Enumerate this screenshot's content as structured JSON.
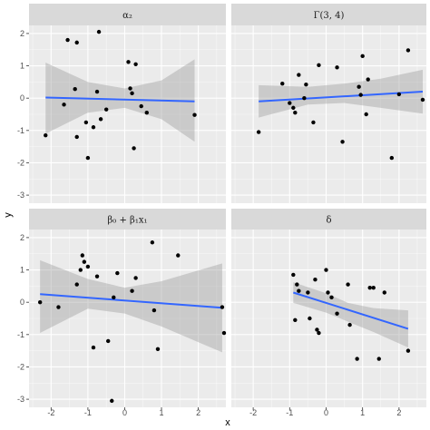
{
  "chart_data": {
    "type": "scatter",
    "xlabel": "x",
    "ylabel": "y",
    "xlim": [
      -2.6,
      2.75
    ],
    "ylim": [
      -3.25,
      2.25
    ],
    "x_ticks": [
      -2,
      -1,
      0,
      1,
      2
    ],
    "y_ticks": [
      -3,
      -2,
      -1,
      0,
      1,
      2
    ],
    "grid": true,
    "fit": "linear regression line with confidence band",
    "colors": {
      "panel_background": "#ebebeb",
      "strip_background": "#d9d9d9",
      "grid_major": "#ffffff",
      "points": "#000000",
      "fit_line": "#3366ff",
      "confidence_band": "#999999"
    },
    "panels": [
      {
        "label": "α₂",
        "points": [
          [
            -2.15,
            -1.15
          ],
          [
            -1.65,
            -0.2
          ],
          [
            -1.55,
            1.8
          ],
          [
            -1.3,
            1.72
          ],
          [
            -1.35,
            0.28
          ],
          [
            -1.3,
            -1.2
          ],
          [
            -1.05,
            -0.75
          ],
          [
            -1.0,
            -1.85
          ],
          [
            -0.85,
            -0.9
          ],
          [
            -0.75,
            0.2
          ],
          [
            -0.7,
            2.05
          ],
          [
            -0.65,
            -0.65
          ],
          [
            -0.5,
            -0.35
          ],
          [
            0.1,
            1.12
          ],
          [
            0.15,
            0.3
          ],
          [
            0.2,
            0.15
          ],
          [
            0.25,
            -1.55
          ],
          [
            0.3,
            1.05
          ],
          [
            0.45,
            -0.25
          ],
          [
            0.6,
            -0.45
          ],
          [
            1.9,
            -0.52
          ]
        ],
        "fit": {
          "x": [
            -2.15,
            1.9
          ],
          "y": [
            0.02,
            -0.1
          ]
        },
        "band_upper": [
          [
            -2.15,
            1.1
          ],
          [
            -1.0,
            0.5
          ],
          [
            0.0,
            0.3
          ],
          [
            1.0,
            0.55
          ],
          [
            1.9,
            1.2
          ]
        ],
        "band_lower": [
          [
            -2.15,
            -1.1
          ],
          [
            -1.0,
            -0.45
          ],
          [
            0.0,
            -0.3
          ],
          [
            1.0,
            -0.65
          ],
          [
            1.9,
            -1.35
          ]
        ]
      },
      {
        "label": "Γ(3, 4)",
        "points": [
          [
            -1.85,
            -1.05
          ],
          [
            -1.2,
            0.45
          ],
          [
            -1.0,
            -0.15
          ],
          [
            -0.9,
            -0.3
          ],
          [
            -0.85,
            -0.45
          ],
          [
            -0.75,
            0.72
          ],
          [
            -0.6,
            0.0
          ],
          [
            -0.55,
            0.42
          ],
          [
            -0.35,
            -0.75
          ],
          [
            -0.2,
            1.02
          ],
          [
            0.3,
            0.95
          ],
          [
            0.45,
            -1.35
          ],
          [
            0.9,
            0.35
          ],
          [
            0.95,
            0.1
          ],
          [
            1.0,
            1.3
          ],
          [
            1.1,
            -0.5
          ],
          [
            1.15,
            0.58
          ],
          [
            1.8,
            -1.85
          ],
          [
            2.0,
            0.12
          ],
          [
            2.25,
            1.48
          ],
          [
            2.65,
            -0.05
          ]
        ],
        "fit": {
          "x": [
            -1.85,
            2.65
          ],
          "y": [
            -0.1,
            0.2
          ]
        },
        "band_upper": [
          [
            -1.85,
            0.4
          ],
          [
            -0.5,
            0.35
          ],
          [
            0.5,
            0.45
          ],
          [
            1.5,
            0.6
          ],
          [
            2.65,
            0.88
          ]
        ],
        "band_lower": [
          [
            -1.85,
            -0.6
          ],
          [
            -0.5,
            -0.2
          ],
          [
            0.5,
            -0.15
          ],
          [
            1.5,
            -0.3
          ],
          [
            2.65,
            -0.48
          ]
        ]
      },
      {
        "label": "β₀ + β₁x₁",
        "points": [
          [
            -2.3,
            0.0
          ],
          [
            -1.8,
            -0.15
          ],
          [
            -1.3,
            0.55
          ],
          [
            -1.2,
            1.0
          ],
          [
            -1.15,
            1.45
          ],
          [
            -1.1,
            1.25
          ],
          [
            -1.0,
            1.1
          ],
          [
            -0.85,
            -1.4
          ],
          [
            -0.75,
            0.8
          ],
          [
            -0.45,
            -1.2
          ],
          [
            -0.35,
            -3.05
          ],
          [
            -0.3,
            0.15
          ],
          [
            -0.2,
            0.9
          ],
          [
            0.2,
            0.35
          ],
          [
            0.3,
            0.75
          ],
          [
            0.75,
            1.85
          ],
          [
            0.8,
            -0.25
          ],
          [
            0.9,
            -1.45
          ],
          [
            1.45,
            1.45
          ],
          [
            2.65,
            -0.15
          ],
          [
            2.7,
            -0.95
          ]
        ],
        "fit": {
          "x": [
            -2.3,
            2.65
          ],
          "y": [
            0.25,
            -0.17
          ]
        },
        "band_upper": [
          [
            -2.3,
            1.3
          ],
          [
            -1.0,
            0.72
          ],
          [
            0.0,
            0.45
          ],
          [
            1.0,
            0.65
          ],
          [
            2.65,
            1.2
          ]
        ],
        "band_lower": [
          [
            -2.3,
            -0.95
          ],
          [
            -1.0,
            -0.2
          ],
          [
            0.0,
            -0.35
          ],
          [
            1.0,
            -0.75
          ],
          [
            2.65,
            -1.55
          ]
        ]
      },
      {
        "label": "δ",
        "points": [
          [
            -0.9,
            0.85
          ],
          [
            -0.85,
            -0.55
          ],
          [
            -0.8,
            0.55
          ],
          [
            -0.75,
            0.35
          ],
          [
            -0.5,
            0.3
          ],
          [
            -0.45,
            -0.5
          ],
          [
            -0.3,
            0.7
          ],
          [
            -0.25,
            -0.85
          ],
          [
            -0.2,
            -0.95
          ],
          [
            0.0,
            1.0
          ],
          [
            0.05,
            0.3
          ],
          [
            0.15,
            0.15
          ],
          [
            0.3,
            -0.35
          ],
          [
            0.6,
            0.55
          ],
          [
            0.65,
            -0.7
          ],
          [
            0.85,
            -1.75
          ],
          [
            1.2,
            0.45
          ],
          [
            1.3,
            0.45
          ],
          [
            1.45,
            -1.75
          ],
          [
            1.6,
            0.3
          ],
          [
            2.25,
            -1.5
          ]
        ],
        "fit": {
          "x": [
            -0.9,
            2.25
          ],
          "y": [
            0.3,
            -0.82
          ]
        },
        "band_upper": [
          [
            -0.9,
            0.62
          ],
          [
            0.0,
            0.28
          ],
          [
            0.6,
            -0.02
          ],
          [
            1.3,
            -0.18
          ],
          [
            2.25,
            -0.25
          ]
        ],
        "band_lower": [
          [
            -0.9,
            -0.02
          ],
          [
            0.0,
            -0.32
          ],
          [
            0.6,
            -0.6
          ],
          [
            1.3,
            -0.92
          ],
          [
            2.25,
            -1.4
          ]
        ]
      }
    ]
  }
}
